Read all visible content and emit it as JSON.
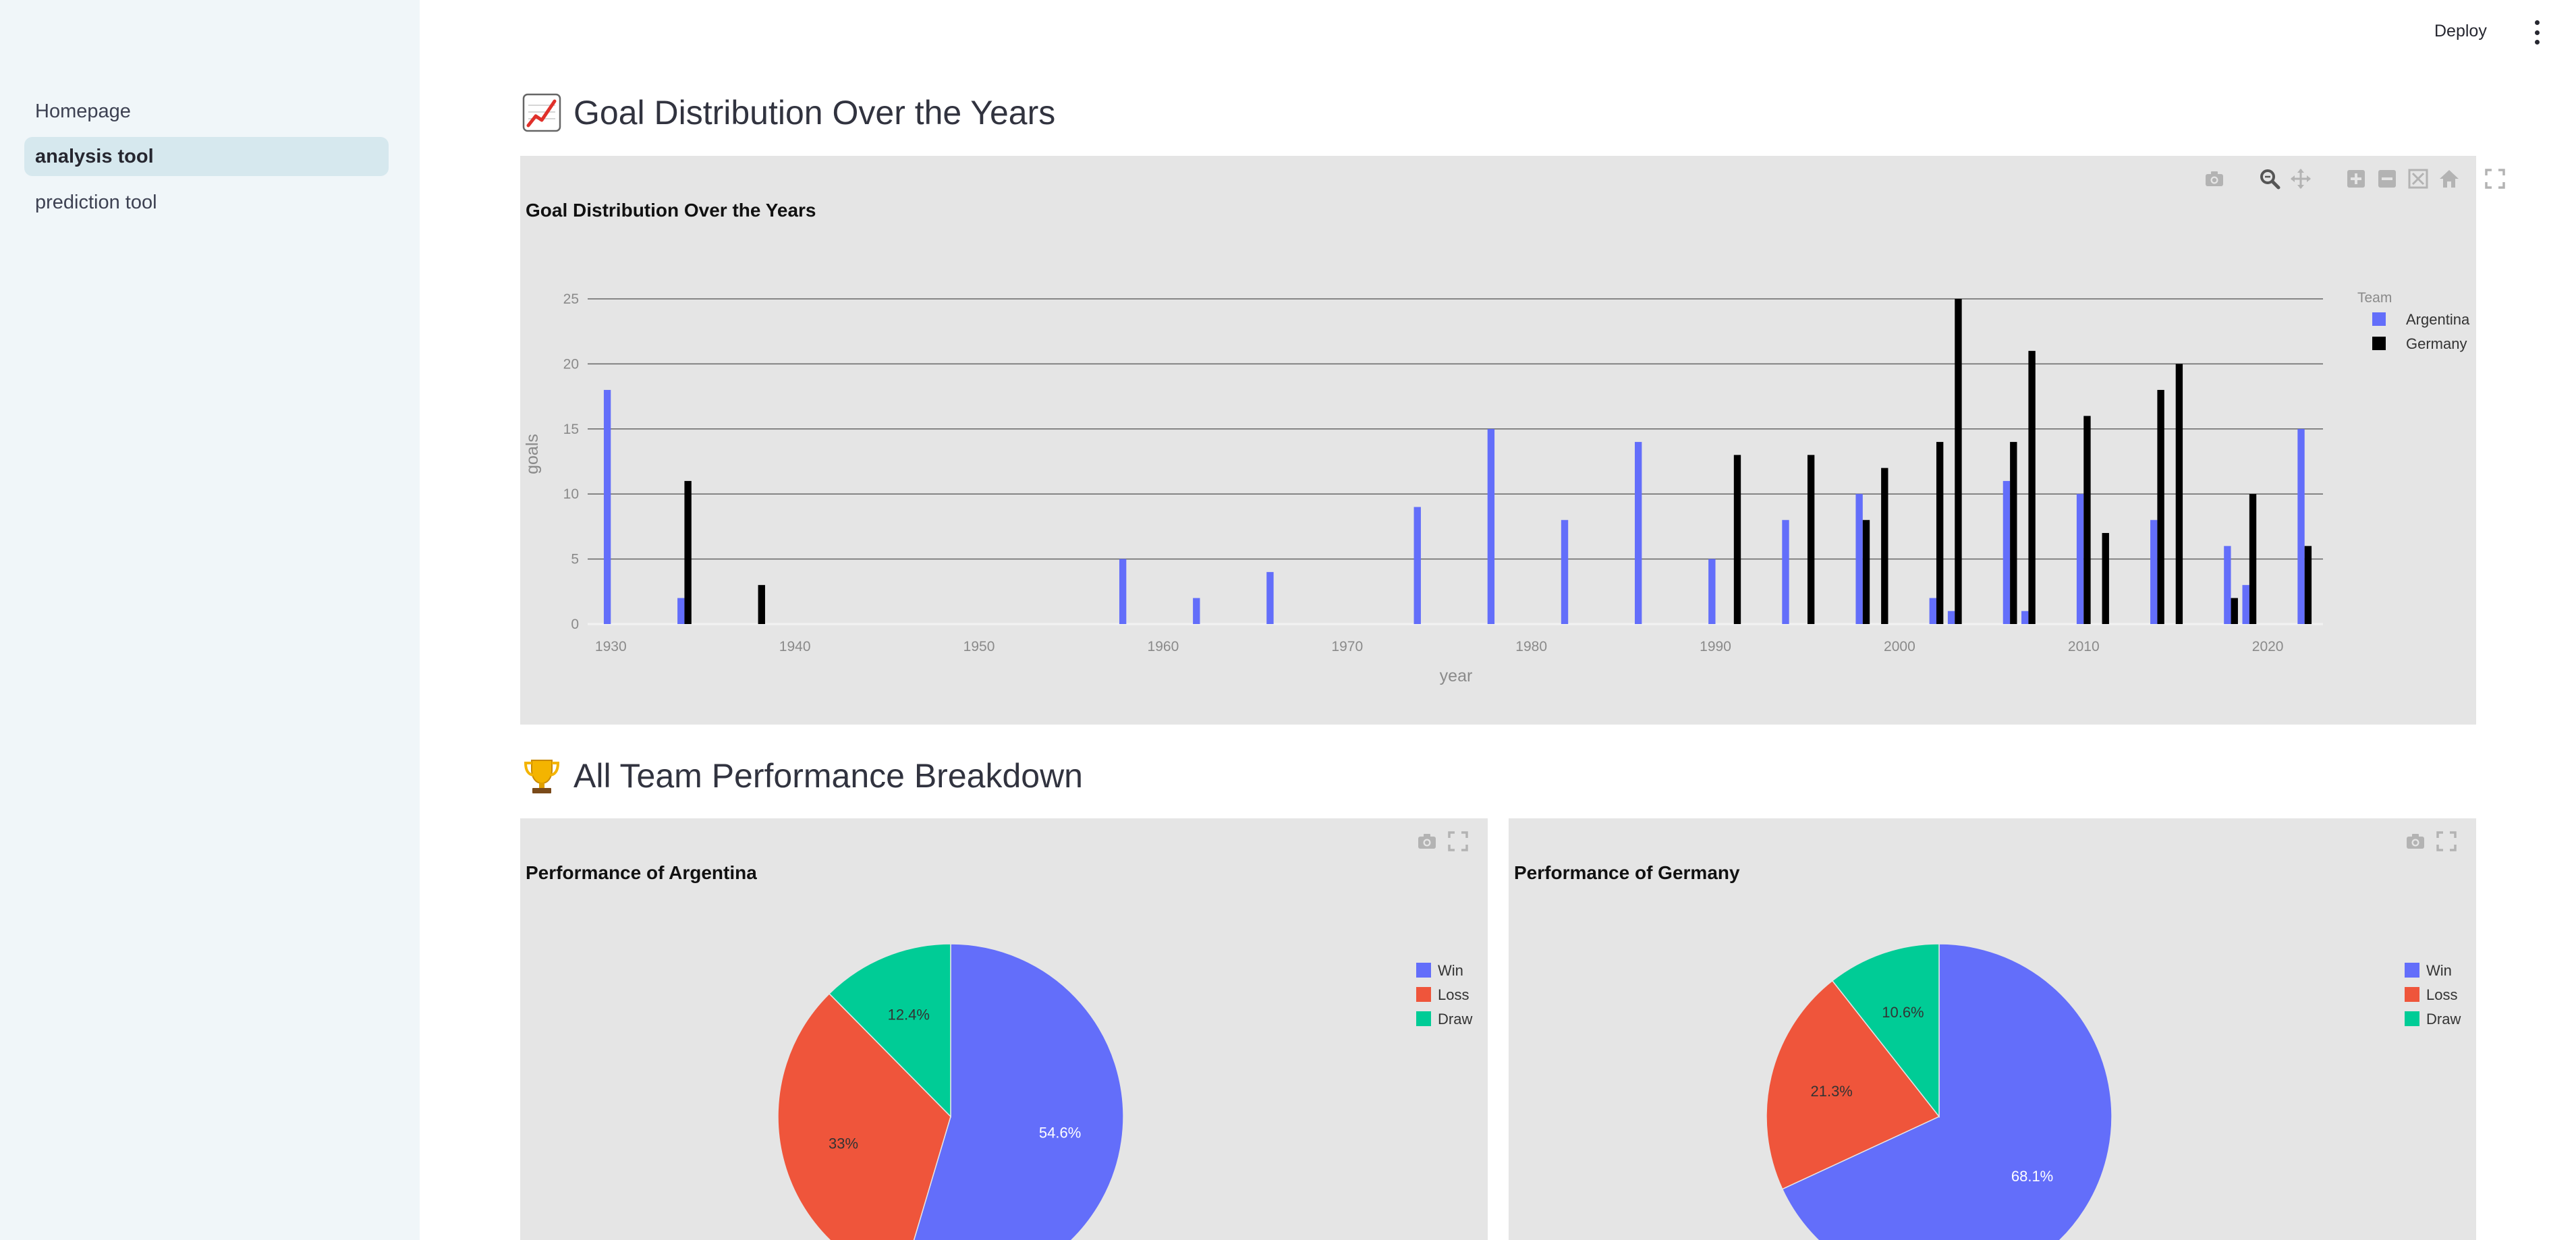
{
  "header": {
    "deploy_label": "Deploy"
  },
  "sidebar": {
    "items": [
      {
        "label": "Homepage",
        "active": false
      },
      {
        "label": "analysis tool",
        "active": true
      },
      {
        "label": "prediction tool",
        "active": false
      }
    ]
  },
  "sections": {
    "goals": {
      "heading": "Goal Distribution Over the Years",
      "icon": "chart-increasing-icon"
    },
    "performance": {
      "heading": "All Team Performance Breakdown",
      "icon": "trophy-icon"
    }
  },
  "chart_data": [
    {
      "type": "bar",
      "title": "Goal Distribution Over the Years",
      "xlabel": "year",
      "ylabel": "goals",
      "xlim": [
        1929,
        2023
      ],
      "ylim": [
        0,
        25
      ],
      "x_ticks": [
        1930,
        1940,
        1950,
        1960,
        1970,
        1980,
        1990,
        2000,
        2010,
        2020
      ],
      "y_ticks": [
        0,
        5,
        10,
        15,
        20,
        25
      ],
      "grid": true,
      "legend": {
        "title": "Team",
        "position": "top-right"
      },
      "series": [
        {
          "name": "Argentina",
          "color": "#636efa",
          "x": [
            1930,
            1934,
            1958,
            1962,
            1966,
            1974,
            1978,
            1982,
            1986,
            1990,
            1994,
            1998,
            2002,
            2003,
            2006,
            2007,
            2010,
            2014,
            2018,
            2019,
            2022
          ],
          "y": [
            18,
            2,
            5,
            2,
            4,
            9,
            15,
            8,
            14,
            5,
            8,
            10,
            2,
            1,
            11,
            1,
            10,
            8,
            6,
            3,
            15
          ]
        },
        {
          "name": "Germany",
          "color": "#000000",
          "x": [
            1934,
            1938,
            1991,
            1995,
            1998,
            1999,
            2002,
            2003,
            2006,
            2007,
            2010,
            2011,
            2014,
            2015,
            2018,
            2019,
            2022
          ],
          "y": [
            11,
            3,
            13,
            13,
            8,
            12,
            14,
            25,
            14,
            21,
            16,
            7,
            18,
            20,
            2,
            10,
            6
          ]
        }
      ]
    },
    {
      "type": "pie",
      "title": "Performance of Argentina",
      "labels": [
        "Win",
        "Loss",
        "Draw"
      ],
      "values": [
        54.6,
        33,
        12.4
      ],
      "value_labels": [
        "54.6%",
        "33%",
        "12.4%"
      ],
      "colors": [
        "#636efa",
        "#ef553b",
        "#00cc96"
      ],
      "legend": {
        "position": "top-right"
      }
    },
    {
      "type": "pie",
      "title": "Performance of Germany",
      "labels": [
        "Win",
        "Loss",
        "Draw"
      ],
      "values": [
        68.1,
        21.3,
        10.6
      ],
      "value_labels": [
        "68.1%",
        "21.3%",
        "10.6%"
      ],
      "colors": [
        "#636efa",
        "#ef553b",
        "#00cc96"
      ],
      "legend": {
        "position": "top-right"
      }
    }
  ]
}
